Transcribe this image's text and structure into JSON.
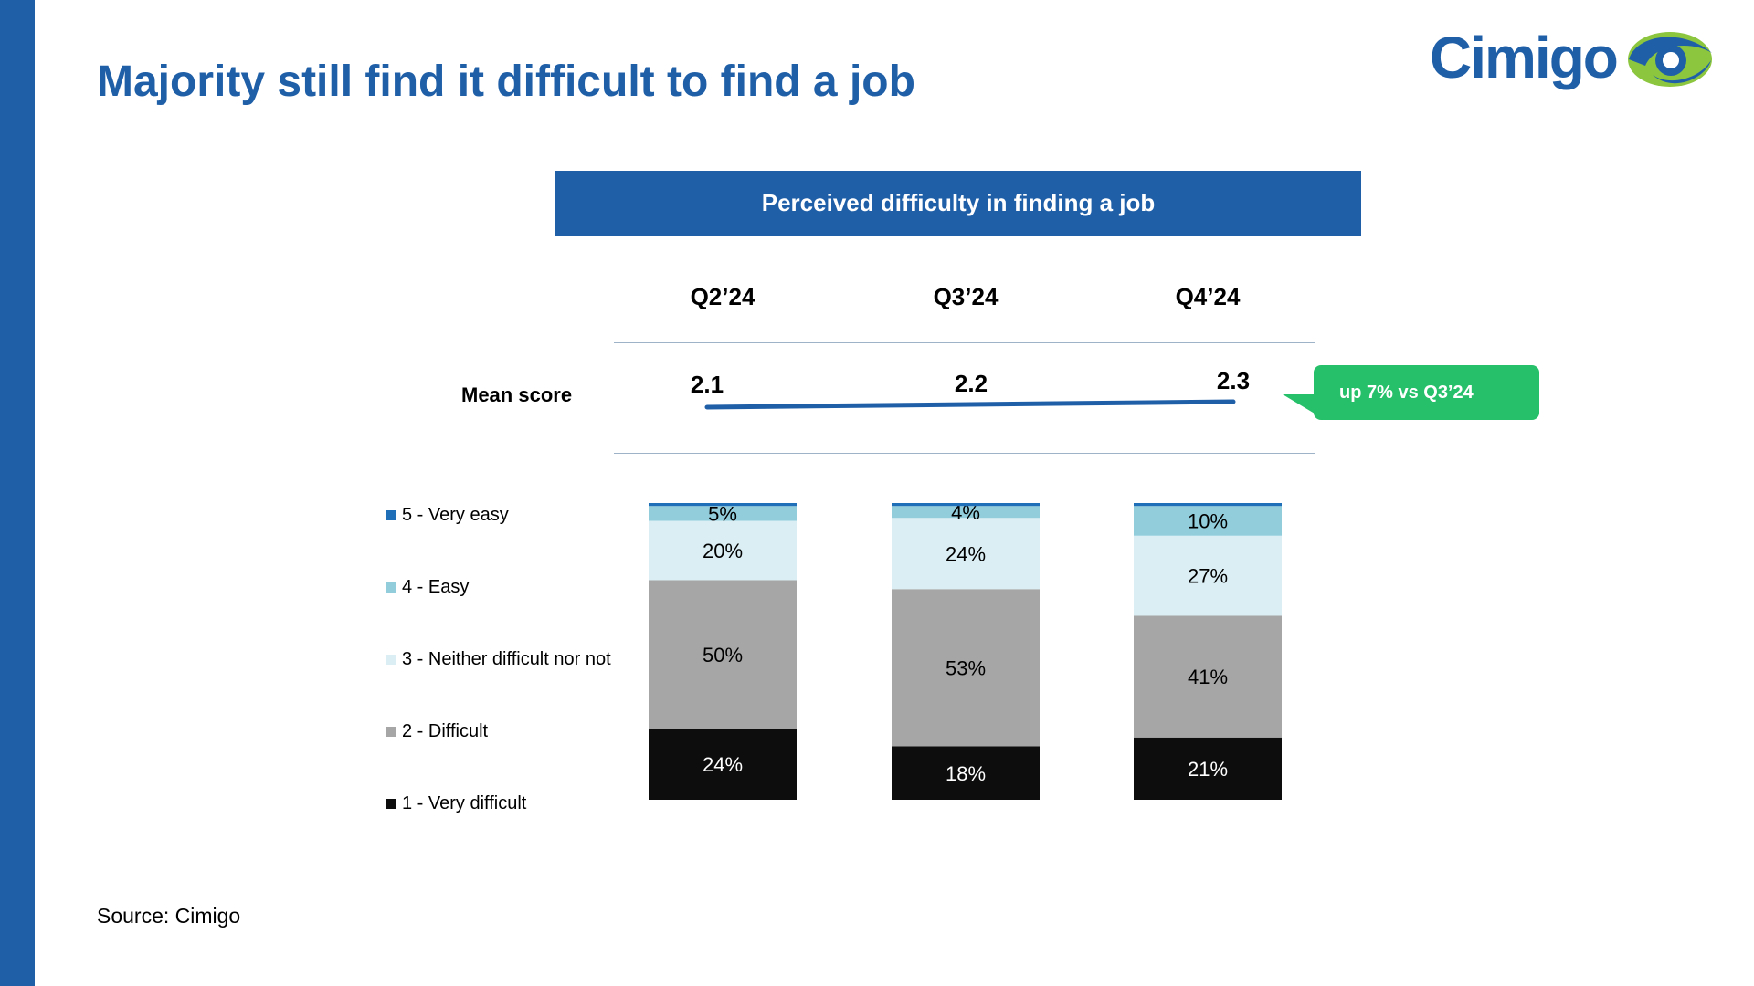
{
  "title": "Majority still find it difficult to find a job",
  "logo": {
    "text": "Cimigo"
  },
  "source": "Source: Cimigo",
  "colors": {
    "brand_blue": "#1f5fa8",
    "logo_green": "#8cc63f",
    "callout_green": "#27c06a"
  },
  "mean_score": {
    "label": "Mean score",
    "values": [
      "2.1",
      "2.2",
      "2.3"
    ],
    "callout": "up 7% vs Q3’24"
  },
  "chart_data": {
    "type": "bar",
    "stacked": true,
    "title": "Perceived difficulty in finding a job",
    "categories": [
      "Q2’24",
      "Q3’24",
      "Q4’24"
    ],
    "series": [
      {
        "name": "1 - Very difficult",
        "color": "#0d0d0d",
        "label_color": "#ffffff",
        "values": [
          24,
          18,
          21
        ],
        "labels": [
          "24%",
          "18%",
          "21%"
        ]
      },
      {
        "name": "2 - Difficult",
        "color": "#a6a6a6",
        "label_color": "#000000",
        "values": [
          50,
          53,
          41
        ],
        "labels": [
          "50%",
          "53%",
          "41%"
        ]
      },
      {
        "name": "3 - Neither difficult nor not",
        "color": "#daeef3",
        "label_color": "#000000",
        "values": [
          20,
          24,
          27
        ],
        "labels": [
          "20%",
          "24%",
          "27%"
        ]
      },
      {
        "name": "4 - Easy",
        "color": "#92cddc",
        "label_color": "#000000",
        "values": [
          5,
          4,
          10
        ],
        "labels": [
          "5%",
          "4%",
          "10%"
        ]
      },
      {
        "name": "5 - Very easy",
        "color": "#1f6fb8",
        "label_color": "#000000",
        "values": [
          1,
          1,
          1
        ],
        "labels": [
          "",
          "",
          ""
        ]
      }
    ],
    "ylim": [
      0,
      100
    ],
    "legend_position": "left"
  }
}
